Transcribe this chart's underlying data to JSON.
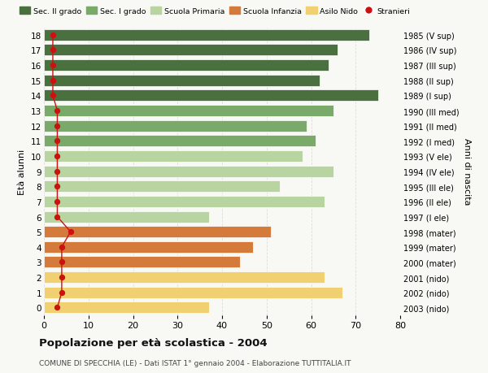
{
  "ages": [
    18,
    17,
    16,
    15,
    14,
    13,
    12,
    11,
    10,
    9,
    8,
    7,
    6,
    5,
    4,
    3,
    2,
    1,
    0
  ],
  "years": [
    "1985 (V sup)",
    "1986 (IV sup)",
    "1987 (III sup)",
    "1988 (II sup)",
    "1989 (I sup)",
    "1990 (III med)",
    "1991 (II med)",
    "1992 (I med)",
    "1993 (V ele)",
    "1994 (IV ele)",
    "1995 (III ele)",
    "1996 (II ele)",
    "1997 (I ele)",
    "1998 (mater)",
    "1999 (mater)",
    "2000 (mater)",
    "2001 (nido)",
    "2002 (nido)",
    "2003 (nido)"
  ],
  "values": [
    73,
    66,
    64,
    62,
    75,
    65,
    59,
    61,
    58,
    65,
    53,
    63,
    37,
    51,
    47,
    44,
    63,
    67,
    37
  ],
  "stranieri": [
    2,
    2,
    2,
    2,
    2,
    3,
    3,
    3,
    3,
    3,
    3,
    3,
    3,
    6,
    4,
    4,
    4,
    4,
    3
  ],
  "bar_colors": [
    "#4a7040",
    "#4a7040",
    "#4a7040",
    "#4a7040",
    "#4a7040",
    "#7aaa6a",
    "#7aaa6a",
    "#7aaa6a",
    "#b8d4a0",
    "#b8d4a0",
    "#b8d4a0",
    "#b8d4a0",
    "#b8d4a0",
    "#d47a3a",
    "#d47a3a",
    "#d47a3a",
    "#f0d070",
    "#f0d070",
    "#f0d070"
  ],
  "legend_labels": [
    "Sec. II grado",
    "Sec. I grado",
    "Scuola Primaria",
    "Scuola Infanzia",
    "Asilo Nido",
    "Stranieri"
  ],
  "legend_colors": [
    "#4a7040",
    "#7aaa6a",
    "#b8d4a0",
    "#d47a3a",
    "#f0d070",
    "#cc1111"
  ],
  "title": "Popolazione per età scolastica - 2004",
  "subtitle": "COMUNE DI SPECCHIA (LE) - Dati ISTAT 1° gennaio 2004 - Elaborazione TUTTITALIA.IT",
  "ylabel": "Età alunni",
  "ylabel_right": "Anni di nascita",
  "xlim": [
    0,
    80
  ],
  "xticks": [
    0,
    10,
    20,
    30,
    40,
    50,
    60,
    70,
    80
  ],
  "bar_height": 0.75,
  "bg_color": "#f8f8f4",
  "stranieri_color": "#cc1111",
  "grid_color": "#dddddd",
  "bar_edge_color": "#ffffff"
}
